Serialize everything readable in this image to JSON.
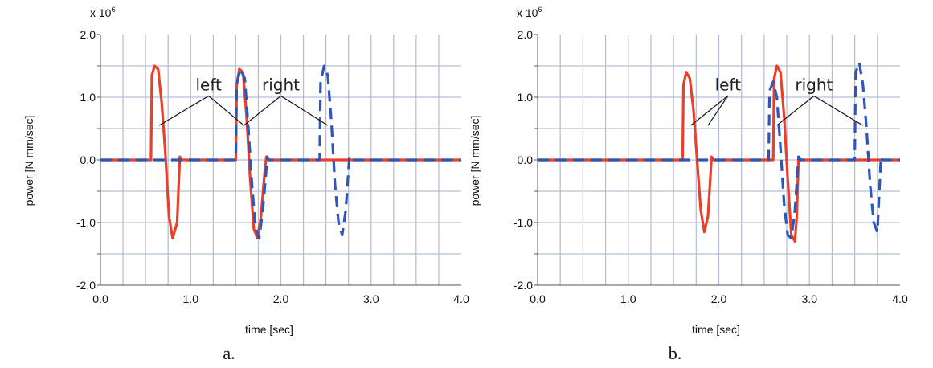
{
  "colors": {
    "left": "#e8402a",
    "right": "#2e55b8",
    "grid": "#b7bfd6"
  },
  "chart_data": [
    {
      "type": "line",
      "panel_label": "a.",
      "xlabel": "time [sec]",
      "ylabel": "power [N mm/sec]",
      "scale_prefix": "x 10",
      "scale_exponent": "6",
      "xlim": [
        0,
        4
      ],
      "ylim": [
        -2,
        2
      ],
      "x_ticks": [
        "0.0",
        "1.0",
        "2.0",
        "3.0",
        "4.0"
      ],
      "y_ticks": [
        "-2.0",
        "-1.0",
        "0.0",
        "1.0",
        "2.0"
      ],
      "grid": true,
      "annotations": [
        {
          "text": "left",
          "x": 1.2,
          "y": 1.2
        },
        {
          "text": "right",
          "x": 2.0,
          "y": 1.2
        }
      ],
      "series": [
        {
          "name": "left",
          "style": "solid",
          "x": [
            0,
            0.56,
            0.57,
            0.6,
            0.64,
            0.68,
            0.72,
            0.76,
            0.8,
            0.85,
            0.88,
            0.9,
            1.5,
            1.51,
            1.54,
            1.58,
            1.62,
            1.66,
            1.7,
            1.74,
            1.78,
            1.82,
            1.84,
            1.86,
            4.0
          ],
          "y": [
            0,
            0,
            1.35,
            1.5,
            1.45,
            0.9,
            0.1,
            -0.9,
            -1.25,
            -1.0,
            0.05,
            0,
            0,
            1.2,
            1.45,
            1.4,
            0.7,
            -0.3,
            -1.1,
            -1.25,
            -0.9,
            -0.2,
            0.05,
            0,
            0
          ]
        },
        {
          "name": "right",
          "style": "dashed",
          "x": [
            0,
            1.5,
            1.51,
            1.55,
            1.6,
            1.64,
            1.68,
            1.72,
            1.76,
            1.8,
            1.85,
            1.86,
            2.43,
            2.44,
            2.48,
            2.52,
            2.56,
            2.6,
            2.64,
            2.68,
            2.72,
            2.76,
            2.78,
            4.0
          ],
          "y": [
            0,
            0,
            1.2,
            1.45,
            1.3,
            0.5,
            -0.4,
            -1.1,
            -1.25,
            -0.8,
            0.05,
            0,
            0,
            1.25,
            1.5,
            1.35,
            0.6,
            -0.4,
            -1.0,
            -1.2,
            -0.8,
            0.05,
            0,
            0
          ]
        }
      ]
    },
    {
      "type": "line",
      "panel_label": "b.",
      "xlabel": "time [sec]",
      "ylabel": "power [N mm/sec]",
      "scale_prefix": "x 10",
      "scale_exponent": "6",
      "xlim": [
        0,
        4
      ],
      "ylim": [
        -2,
        2
      ],
      "x_ticks": [
        "0.0",
        "1.0",
        "2.0",
        "3.0",
        "4.0"
      ],
      "y_ticks": [
        "-2.0",
        "-1.0",
        "0.0",
        "1.0",
        "2.0"
      ],
      "grid": true,
      "annotations": [
        {
          "text": "left",
          "x": 2.1,
          "y": 1.2
        },
        {
          "text": "right",
          "x": 3.05,
          "y": 1.2
        }
      ],
      "series": [
        {
          "name": "left",
          "style": "solid",
          "x": [
            0,
            1.6,
            1.61,
            1.64,
            1.68,
            1.72,
            1.76,
            1.8,
            1.84,
            1.88,
            1.92,
            1.94,
            2.6,
            2.61,
            2.64,
            2.68,
            2.72,
            2.76,
            2.8,
            2.84,
            2.86,
            2.88,
            2.9,
            4.0
          ],
          "y": [
            0,
            0,
            1.2,
            1.4,
            1.3,
            0.8,
            0.0,
            -0.8,
            -1.15,
            -0.9,
            0.05,
            0,
            0,
            1.3,
            1.5,
            1.4,
            0.7,
            -0.3,
            -1.2,
            -1.3,
            -0.9,
            0.05,
            0,
            0
          ]
        },
        {
          "name": "right",
          "style": "dashed",
          "x": [
            0,
            2.55,
            2.56,
            2.6,
            2.64,
            2.68,
            2.72,
            2.76,
            2.8,
            2.84,
            2.88,
            2.9,
            3.5,
            3.51,
            3.55,
            3.59,
            3.63,
            3.67,
            3.71,
            3.75,
            3.79,
            3.8,
            4.0
          ],
          "y": [
            0,
            0,
            1.1,
            1.25,
            1.0,
            0.2,
            -0.7,
            -1.2,
            -1.25,
            -0.8,
            0.05,
            0,
            0,
            1.4,
            1.55,
            1.2,
            0.5,
            -0.4,
            -1.0,
            -1.15,
            0.05,
            0,
            0
          ]
        }
      ]
    }
  ]
}
